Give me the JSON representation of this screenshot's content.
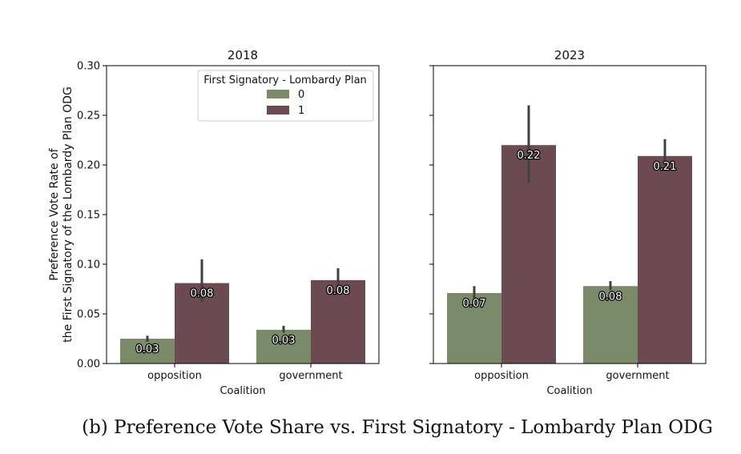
{
  "figure": {
    "caption": "(b) Preference Vote Share vs. First Signatory - Lombardy Plan ODG"
  },
  "chart_data": {
    "type": "bar",
    "ylabel": "Preference Vote Rate of\nthe First Signatory of the Lombardy Plan ODG",
    "xlabel": "Coalition",
    "ylim": [
      0,
      0.3
    ],
    "yticks": [
      "0.00",
      "0.05",
      "0.10",
      "0.15",
      "0.20",
      "0.25",
      "0.30"
    ],
    "categories": [
      "opposition",
      "government"
    ],
    "grid": false,
    "legend": {
      "title": "First Signatory - Lombardy Plan",
      "placement": "top-right",
      "entries": [
        "0",
        "1"
      ]
    },
    "colors": {
      "0": "#7b8b6a",
      "1": "#6b4a52",
      "errorbar": "#404040"
    },
    "panels": [
      {
        "title": "2018",
        "series": [
          {
            "name": "0",
            "values": [
              0.025,
              0.034
            ],
            "ci_low": [
              0.022,
              0.031
            ],
            "ci_high": [
              0.028,
              0.038
            ],
            "labels": [
              "0.03",
              "0.03"
            ]
          },
          {
            "name": "1",
            "values": [
              0.081,
              0.084
            ],
            "ci_low": [
              0.062,
              0.072
            ],
            "ci_high": [
              0.105,
              0.096
            ],
            "labels": [
              "0.08",
              "0.08"
            ]
          }
        ]
      },
      {
        "title": "2023",
        "series": [
          {
            "name": "0",
            "values": [
              0.071,
              0.078
            ],
            "ci_low": [
              0.066,
              0.074
            ],
            "ci_high": [
              0.078,
              0.083
            ],
            "labels": [
              "0.07",
              "0.08"
            ]
          },
          {
            "name": "1",
            "values": [
              0.22,
              0.209
            ],
            "ci_low": [
              0.182,
              0.195
            ],
            "ci_high": [
              0.26,
              0.226
            ],
            "labels": [
              "0.22",
              "0.21"
            ]
          }
        ]
      }
    ]
  }
}
